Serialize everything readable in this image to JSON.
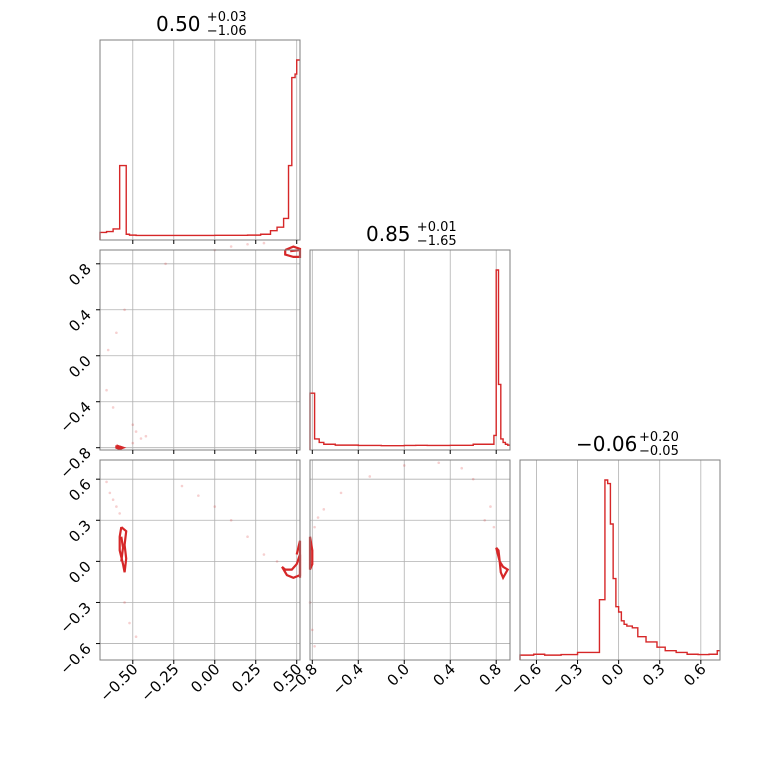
{
  "chart_data": {
    "type": "corner",
    "color": "#d62728",
    "params": [
      {
        "title": {
          "value": "0.50",
          "plus": "+0.03",
          "minus": "−1.06"
        },
        "range": [
          -0.7,
          0.52
        ],
        "ticks": [
          -0.5,
          -0.25,
          0.0,
          0.25,
          0.5
        ],
        "tick_labels": [
          "−0.50",
          "−0.25",
          "0.00",
          "0.25",
          "0.50"
        ],
        "hist": {
          "bins": [
            -0.7,
            -0.66,
            -0.62,
            -0.58,
            -0.56,
            -0.54,
            -0.52,
            -0.48,
            -0.4,
            -0.2,
            0.0,
            0.1,
            0.2,
            0.28,
            0.34,
            0.38,
            0.42,
            0.45,
            0.47,
            0.49,
            0.5,
            0.51,
            0.52
          ],
          "values": [
            0.02,
            0.025,
            0.04,
            0.4,
            0.4,
            0.01,
            0.005,
            0.003,
            0.003,
            0.003,
            0.004,
            0.004,
            0.005,
            0.01,
            0.03,
            0.05,
            0.1,
            0.4,
            0.9,
            0.92,
            1.0,
            1.0
          ]
        }
      },
      {
        "title": {
          "value": "0.85",
          "plus": "+0.01",
          "minus": "−1.65"
        },
        "range": [
          -0.82,
          0.92
        ],
        "ticks": [
          -0.8,
          -0.4,
          0.0,
          0.4,
          0.8
        ],
        "tick_labels": [
          "−0.8",
          "−0.4",
          "0.0",
          "0.4",
          "0.8"
        ],
        "hist": {
          "bins": [
            -0.82,
            -0.78,
            -0.74,
            -0.7,
            -0.6,
            -0.4,
            -0.2,
            0.0,
            0.1,
            0.2,
            0.4,
            0.6,
            0.78,
            0.8,
            0.82,
            0.84,
            0.86,
            0.88,
            0.9,
            0.92
          ],
          "values": [
            0.3,
            0.04,
            0.02,
            0.01,
            0.005,
            0.003,
            0.002,
            0.003,
            0.004,
            0.003,
            0.004,
            0.01,
            0.06,
            1.0,
            0.35,
            0.04,
            0.02,
            0.01,
            0.005
          ]
        }
      },
      {
        "title": {
          "value": "−0.06",
          "plus": "+0.20",
          "minus": "−0.05"
        },
        "range": [
          -0.72,
          0.74
        ],
        "ticks": [
          -0.6,
          -0.3,
          0.0,
          0.3,
          0.6
        ],
        "tick_labels": [
          "−0.6",
          "−0.3",
          "0.0",
          "0.3",
          "0.6"
        ],
        "hist": {
          "bins": [
            -0.72,
            -0.62,
            -0.54,
            -0.42,
            -0.3,
            -0.14,
            -0.1,
            -0.08,
            -0.06,
            -0.04,
            -0.02,
            0.0,
            0.02,
            0.04,
            0.06,
            0.1,
            0.14,
            0.2,
            0.28,
            0.34,
            0.42,
            0.5,
            0.58,
            0.66,
            0.72,
            0.74
          ],
          "values": [
            0.005,
            0.01,
            0.005,
            0.008,
            0.02,
            0.32,
            1.0,
            0.98,
            0.75,
            0.44,
            0.28,
            0.25,
            0.2,
            0.18,
            0.17,
            0.16,
            0.11,
            0.08,
            0.05,
            0.03,
            0.02,
            0.01,
            0.008,
            0.01,
            0.03
          ]
        }
      }
    ],
    "pairs": [
      {
        "row": 1,
        "col": 0,
        "contours": [
          [
            [
              0.43,
              0.92
            ],
            [
              0.48,
              0.95
            ],
            [
              0.52,
              0.93
            ],
            [
              0.52,
              0.86
            ],
            [
              0.48,
              0.86
            ],
            [
              0.43,
              0.88
            ],
            [
              0.43,
              0.92
            ]
          ],
          [
            [
              0.46,
              0.91
            ],
            [
              0.52,
              0.92
            ]
          ],
          [
            [
              -0.6,
              -0.78
            ],
            [
              -0.58,
              -0.79
            ],
            [
              -0.56,
              -0.8
            ],
            [
              -0.58,
              -0.81
            ],
            [
              -0.6,
              -0.8
            ],
            [
              -0.6,
              -0.78
            ]
          ]
        ],
        "samples": [
          [
            -0.45,
            -0.72
          ],
          [
            -0.5,
            -0.6
          ],
          [
            -0.62,
            -0.45
          ],
          [
            -0.66,
            -0.3
          ],
          [
            -0.6,
            0.2
          ],
          [
            -0.3,
            0.8
          ],
          [
            0.2,
            0.97
          ],
          [
            0.0,
            0.92
          ],
          [
            -0.5,
            -0.76
          ],
          [
            -0.48,
            -0.66
          ],
          [
            -0.42,
            -0.7
          ],
          [
            -0.55,
            0.4
          ],
          [
            -0.65,
            0.05
          ],
          [
            0.3,
            0.98
          ],
          [
            0.1,
            0.95
          ]
        ]
      },
      {
        "row": 2,
        "col": 0,
        "contours": [
          [
            [
              -0.57,
              0.25
            ],
            [
              -0.54,
              0.22
            ],
            [
              -0.55,
              0.12
            ],
            [
              -0.54,
              0.02
            ],
            [
              -0.55,
              -0.08
            ],
            [
              -0.56,
              -0.02
            ],
            [
              -0.58,
              0.08
            ],
            [
              -0.58,
              0.18
            ],
            [
              -0.57,
              0.25
            ]
          ],
          [
            [
              -0.57,
              0.18
            ],
            [
              -0.56,
              0.1
            ],
            [
              -0.57,
              0.0
            ]
          ],
          [
            [
              0.41,
              -0.04
            ],
            [
              0.44,
              -0.1
            ],
            [
              0.48,
              -0.12
            ],
            [
              0.52,
              -0.1
            ],
            [
              0.52,
              0.05
            ],
            [
              0.5,
              -0.02
            ],
            [
              0.47,
              -0.06
            ],
            [
              0.43,
              -0.06
            ],
            [
              0.41,
              -0.04
            ]
          ],
          [
            [
              0.5,
              0.05
            ],
            [
              0.52,
              0.15
            ],
            [
              0.52,
              -0.12
            ]
          ]
        ],
        "samples": [
          [
            -0.66,
            0.58
          ],
          [
            -0.64,
            0.5
          ],
          [
            -0.6,
            0.4
          ],
          [
            -0.58,
            0.35
          ],
          [
            -0.55,
            -0.3
          ],
          [
            -0.52,
            -0.45
          ],
          [
            -0.48,
            -0.55
          ],
          [
            -0.2,
            0.55
          ],
          [
            0.0,
            0.4
          ],
          [
            0.2,
            0.18
          ],
          [
            0.3,
            0.05
          ],
          [
            0.38,
            0.0
          ],
          [
            -0.1,
            0.48
          ],
          [
            0.1,
            0.3
          ],
          [
            -0.62,
            0.45
          ]
        ]
      },
      {
        "row": 2,
        "col": 1,
        "contours": [
          [
            [
              -0.82,
              0.18
            ],
            [
              -0.8,
              0.08
            ],
            [
              -0.8,
              -0.02
            ],
            [
              -0.82,
              -0.06
            ],
            [
              -0.82,
              0.18
            ]
          ],
          [
            [
              0.8,
              0.1
            ],
            [
              0.83,
              0.0
            ],
            [
              0.84,
              -0.08
            ],
            [
              0.86,
              -0.12
            ],
            [
              0.9,
              -0.06
            ],
            [
              0.86,
              -0.04
            ],
            [
              0.83,
              0.0
            ],
            [
              0.82,
              0.08
            ],
            [
              0.8,
              0.1
            ]
          ]
        ],
        "samples": [
          [
            -0.78,
            0.25
          ],
          [
            -0.7,
            0.38
          ],
          [
            -0.55,
            0.5
          ],
          [
            -0.3,
            0.62
          ],
          [
            0.0,
            0.7
          ],
          [
            0.3,
            0.72
          ],
          [
            0.6,
            0.6
          ],
          [
            0.75,
            0.4
          ],
          [
            0.7,
            0.3
          ],
          [
            -0.82,
            -0.3
          ],
          [
            -0.8,
            -0.5
          ],
          [
            -0.78,
            -0.62
          ],
          [
            0.5,
            0.68
          ],
          [
            -0.75,
            0.32
          ],
          [
            0.78,
            0.25
          ]
        ]
      }
    ],
    "grid": true
  }
}
